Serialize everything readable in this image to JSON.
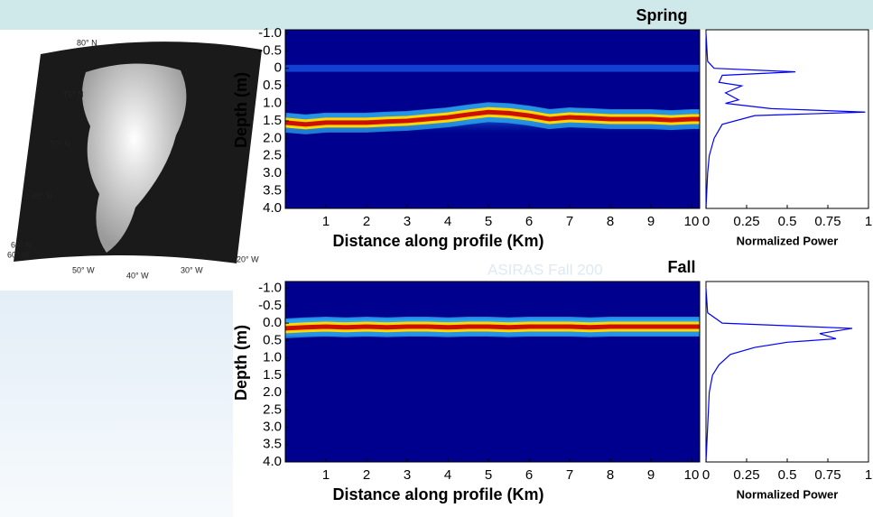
{
  "map": {
    "labels": [
      "80° N",
      "75° N",
      "70° N",
      "65° N",
      "60° N",
      "60° W",
      "50° W",
      "40° W",
      "30° W",
      "20° W"
    ]
  },
  "overlay_text": "ASIRAS Fall 200",
  "chart_data": [
    {
      "type": "heatmap",
      "title": "Spring",
      "ylabel": "Depth (m)",
      "xlabel": "Distance along profile (Km)",
      "x": [
        0,
        0.5,
        1,
        1.5,
        2,
        2.5,
        3,
        3.5,
        4,
        4.5,
        5,
        5.5,
        6,
        6.5,
        7,
        7.5,
        8,
        8.5,
        9,
        9.5,
        10,
        10.2
      ],
      "values": [
        1.55,
        1.6,
        1.55,
        1.55,
        1.55,
        1.52,
        1.5,
        1.45,
        1.4,
        1.32,
        1.25,
        1.28,
        1.35,
        1.45,
        1.4,
        1.42,
        1.45,
        1.45,
        1.45,
        1.48,
        1.45,
        1.45
      ],
      "xlim": [
        0,
        10.2
      ],
      "ylim": [
        -1.1,
        4.0
      ],
      "xticks": [
        1,
        2,
        3,
        4,
        5,
        6,
        7,
        8,
        9,
        10
      ],
      "yticks": [
        {
          "value": -1.0,
          "label": "-1.0"
        },
        -0.5,
        0,
        0.5,
        {
          "value": 1.0,
          "label": "1.0"
        },
        1.5,
        {
          "value": 2.0,
          "label": "2.0"
        },
        2.5,
        {
          "value": 3.0,
          "label": "3.0"
        },
        3.5,
        {
          "value": 4.0,
          "label": "4.0"
        }
      ]
    },
    {
      "type": "line",
      "xlabel": "Normalized Power",
      "color": "#0000ff",
      "y": [
        -1.0,
        -0.2,
        0,
        0.1,
        0.2,
        0.4,
        0.5,
        0.7,
        0.9,
        1.0,
        1.15,
        1.25,
        1.35,
        1.6,
        2.0,
        2.5,
        3.0,
        4.0
      ],
      "values": [
        0,
        0.01,
        0.05,
        0.55,
        0.1,
        0.08,
        0.22,
        0.12,
        0.2,
        0.12,
        0.4,
        0.98,
        0.3,
        0.1,
        0.05,
        0.02,
        0.01,
        0
      ],
      "xlim": [
        0,
        1
      ],
      "ylim": [
        -1.1,
        4.0
      ],
      "xticks": [
        0,
        0.25,
        0.5,
        0.75,
        1
      ]
    },
    {
      "type": "heatmap",
      "title": "Fall",
      "ylabel": "Depth (m)",
      "xlabel": "Distance along profile (Km)",
      "x": [
        0,
        0.5,
        1,
        1.5,
        2,
        2.5,
        3,
        3.5,
        4,
        4.5,
        5,
        5.5,
        6,
        6.5,
        7,
        7.5,
        8,
        8.5,
        9,
        9.5,
        10,
        10.2
      ],
      "values": [
        0.15,
        0.12,
        0.1,
        0.12,
        0.1,
        0.12,
        0.1,
        0.1,
        0.12,
        0.1,
        0.1,
        0.12,
        0.1,
        0.1,
        0.1,
        0.12,
        0.1,
        0.1,
        0.1,
        0.1,
        0.1,
        0.1
      ],
      "xlim": [
        0,
        10.2
      ],
      "ylim": [
        -1.2,
        4.0
      ],
      "xticks": [
        1,
        2,
        3,
        4,
        5,
        6,
        7,
        8,
        9,
        10
      ],
      "yticks": [
        {
          "value": -1.0,
          "label": "-1.0"
        },
        -0.5,
        {
          "value": 0,
          "label": "0.0"
        },
        0.5,
        {
          "value": 1.0,
          "label": "1.0"
        },
        1.5,
        {
          "value": 2.0,
          "label": "2.0"
        },
        2.5,
        {
          "value": 3.0,
          "label": "3.0"
        },
        3.5,
        {
          "value": 4.0,
          "label": "4.0"
        }
      ]
    },
    {
      "type": "line",
      "xlabel": "Normalized Power",
      "color": "#0000ff",
      "y": [
        -1.0,
        -0.3,
        0,
        0.15,
        0.3,
        0.45,
        0.55,
        0.7,
        0.9,
        1.2,
        1.5,
        2.0,
        3.0,
        4.0
      ],
      "values": [
        0,
        0.01,
        0.1,
        0.9,
        0.7,
        0.8,
        0.5,
        0.3,
        0.15,
        0.08,
        0.04,
        0.02,
        0.01,
        0
      ],
      "xlim": [
        0,
        1
      ],
      "ylim": [
        -1.2,
        4.0
      ],
      "xticks": [
        0,
        0.25,
        0.5,
        0.75,
        1
      ]
    }
  ]
}
